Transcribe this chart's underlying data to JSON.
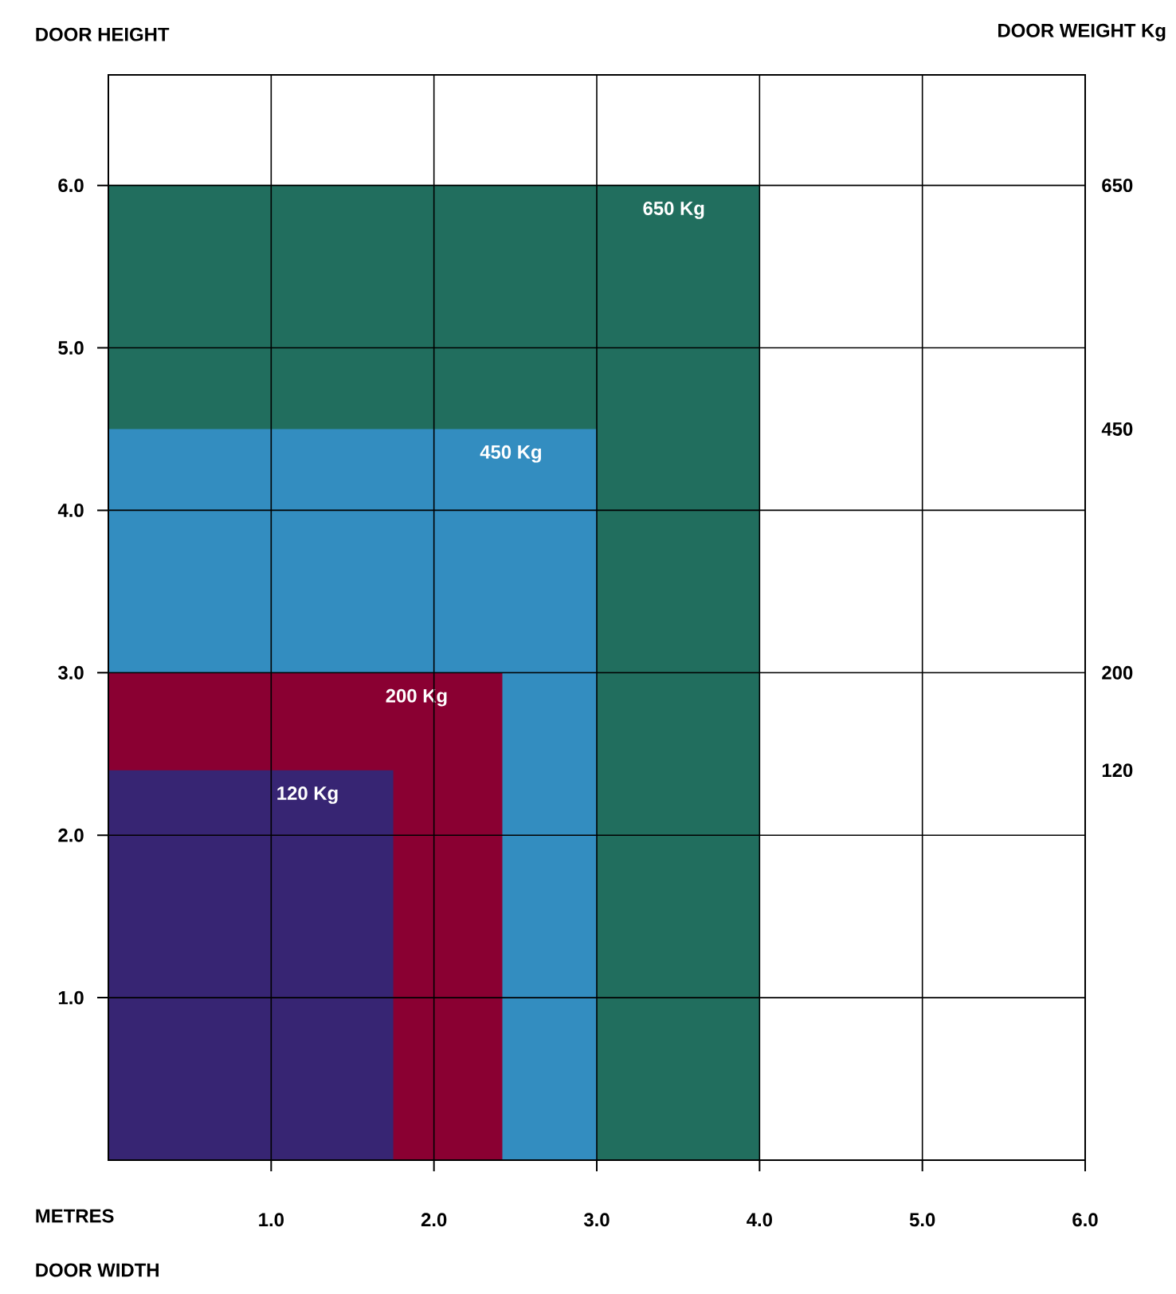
{
  "chart_data": {
    "type": "area",
    "xlabel": "DOOR WIDTH",
    "ylabel": "DOOR HEIGHT",
    "y2label": "DOOR WEIGHT Kg",
    "xlim": [
      0,
      6
    ],
    "ylim": [
      0,
      6.68
    ],
    "xticks": [
      {
        "value": 1,
        "label": "1.0"
      },
      {
        "value": 2,
        "label": "2.0"
      },
      {
        "value": 3,
        "label": "3.0"
      },
      {
        "value": 4,
        "label": "4.0"
      },
      {
        "value": 5,
        "label": "5.0"
      },
      {
        "value": 6,
        "label": "6.0"
      }
    ],
    "yticks": [
      {
        "value": 1,
        "label": "1.0"
      },
      {
        "value": 2,
        "label": "2.0"
      },
      {
        "value": 3,
        "label": "3.0"
      },
      {
        "value": 4,
        "label": "4.0"
      },
      {
        "value": 5,
        "label": "5.0"
      },
      {
        "value": 6,
        "label": "6.0"
      }
    ],
    "grid": true,
    "series": [
      {
        "color": "#216e5e",
        "x": [
          0,
          4.0
        ],
        "values": [
          6.0,
          6.0
        ]
      },
      {
        "color": "#338dc0",
        "x": [
          0,
          3.0
        ],
        "values": [
          4.5,
          4.5
        ]
      },
      {
        "color": "#8a0032",
        "x": [
          0,
          2.42
        ],
        "values": [
          3.0,
          3.0
        ]
      },
      {
        "color": "#372573",
        "x": [
          0,
          1.75
        ],
        "values": [
          2.4,
          2.4
        ]
      }
    ],
    "annotations": [
      "650 Kg",
      "450 Kg",
      "200 Kg",
      "120 Kg",
      "650",
      "450",
      "200",
      "120",
      "METRES"
    ]
  }
}
